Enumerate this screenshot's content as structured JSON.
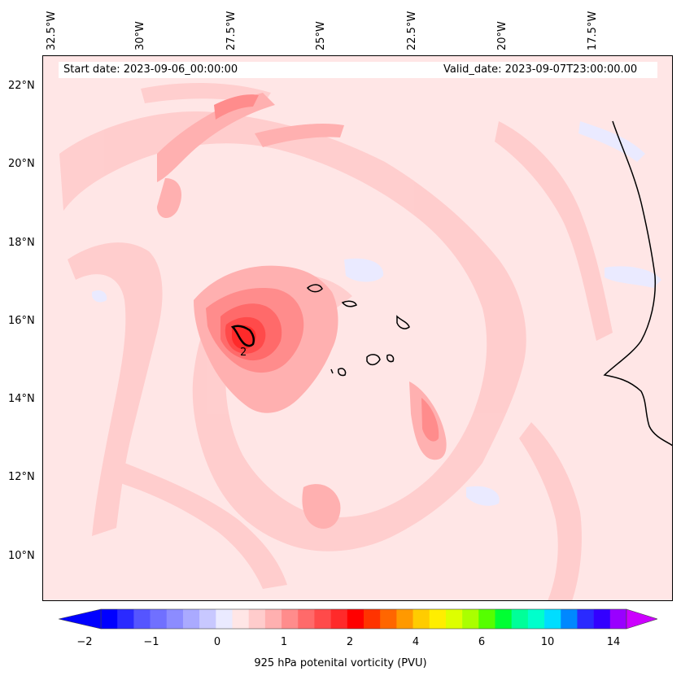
{
  "map": {
    "start_date": "Start date: 2023-09-06_00:00:00",
    "valid_date": "Valid_date: 2023-09-07T23:00:00.00",
    "contour_label": "2",
    "longitude_labels": [
      "32.5°W",
      "30°W",
      "27.5°W",
      "25°W",
      "22.5°W",
      "20°W",
      "17.5°W"
    ],
    "latitude_labels": [
      "22°N",
      "20°N",
      "18°N",
      "16°N",
      "14°N",
      "12°N",
      "10°N"
    ]
  },
  "colorbar": {
    "label": "925 hPa potenital vorticity (PVU)",
    "ticks": [
      "−2",
      "−1",
      "0",
      "1",
      "2",
      "4",
      "6",
      "10",
      "14"
    ],
    "colors": [
      "#0000ff",
      "#2a2aff",
      "#5555ff",
      "#7070ff",
      "#8c8cff",
      "#aaaaff",
      "#c8c8ff",
      "#eaeaff",
      "#ffe6e6",
      "#ffcccc",
      "#ffb0b0",
      "#ff8c8c",
      "#ff6a6a",
      "#ff4a4a",
      "#ff2a2a",
      "#ff0000",
      "#ff3300",
      "#ff6600",
      "#ff9900",
      "#ffcc00",
      "#ffee00",
      "#ddff00",
      "#aaff00",
      "#55ff00",
      "#00ff33",
      "#00ff99",
      "#00ffcc",
      "#00ddff",
      "#0088ff",
      "#2a2aff",
      "#3300ff",
      "#9900ff"
    ]
  }
}
